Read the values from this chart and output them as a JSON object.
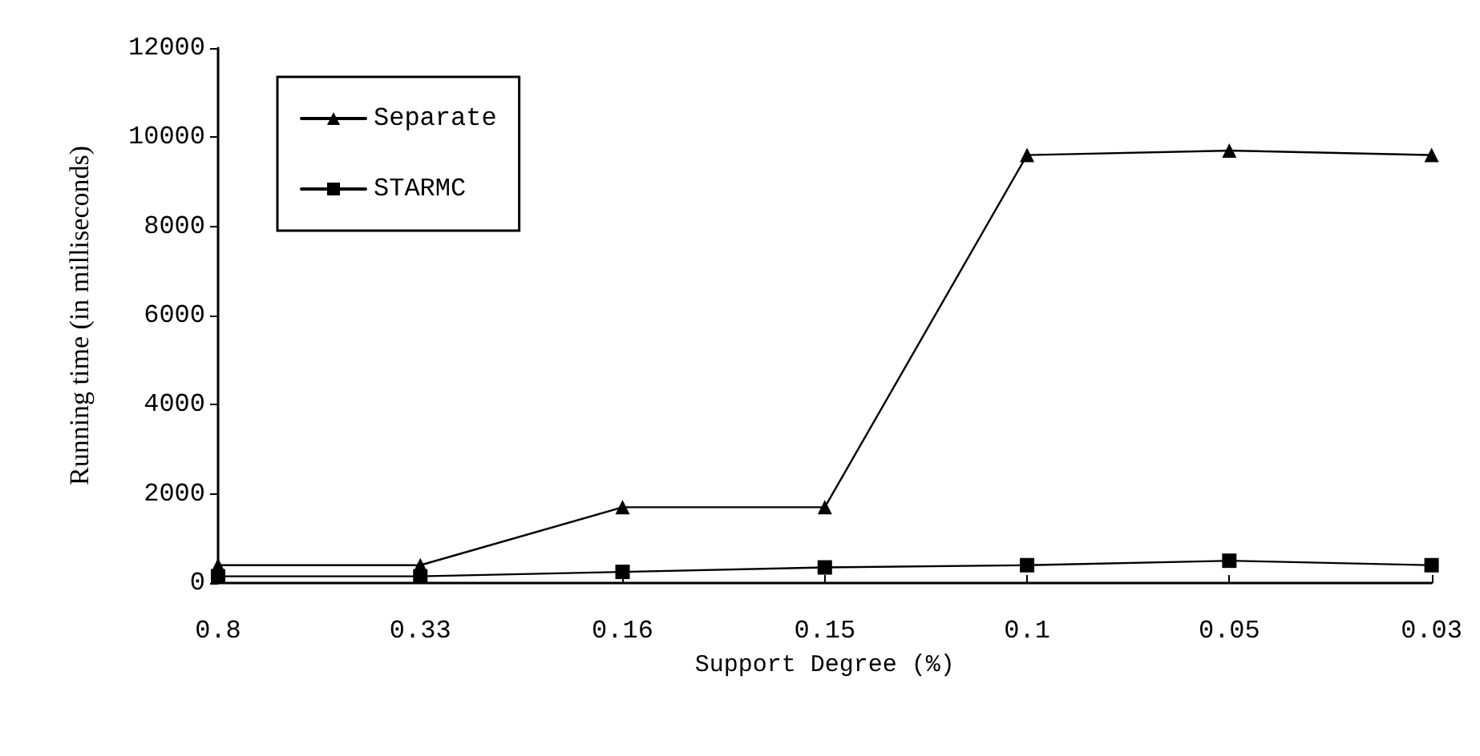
{
  "chart_data": {
    "type": "line",
    "xlabel": "Support Degree (%)",
    "ylabel": "Running time (in milliseconds)",
    "categories": [
      "0.8",
      "0.33",
      "0.16",
      "0.15",
      "0.1",
      "0.05",
      "0.03"
    ],
    "series": [
      {
        "name": "Separate",
        "color": "#000000",
        "marker": "triangle",
        "values": [
          400,
          400,
          1700,
          1700,
          9600,
          9700,
          9600
        ]
      },
      {
        "name": "STARMC",
        "color": "#000000",
        "marker": "square",
        "values": [
          150,
          150,
          250,
          350,
          400,
          500,
          400
        ]
      }
    ],
    "ylim": [
      0,
      12000
    ],
    "yticks": [
      0,
      2000,
      4000,
      6000,
      8000,
      10000,
      12000
    ],
    "grid": false,
    "legend": "top left",
    "line_style": "solid"
  }
}
